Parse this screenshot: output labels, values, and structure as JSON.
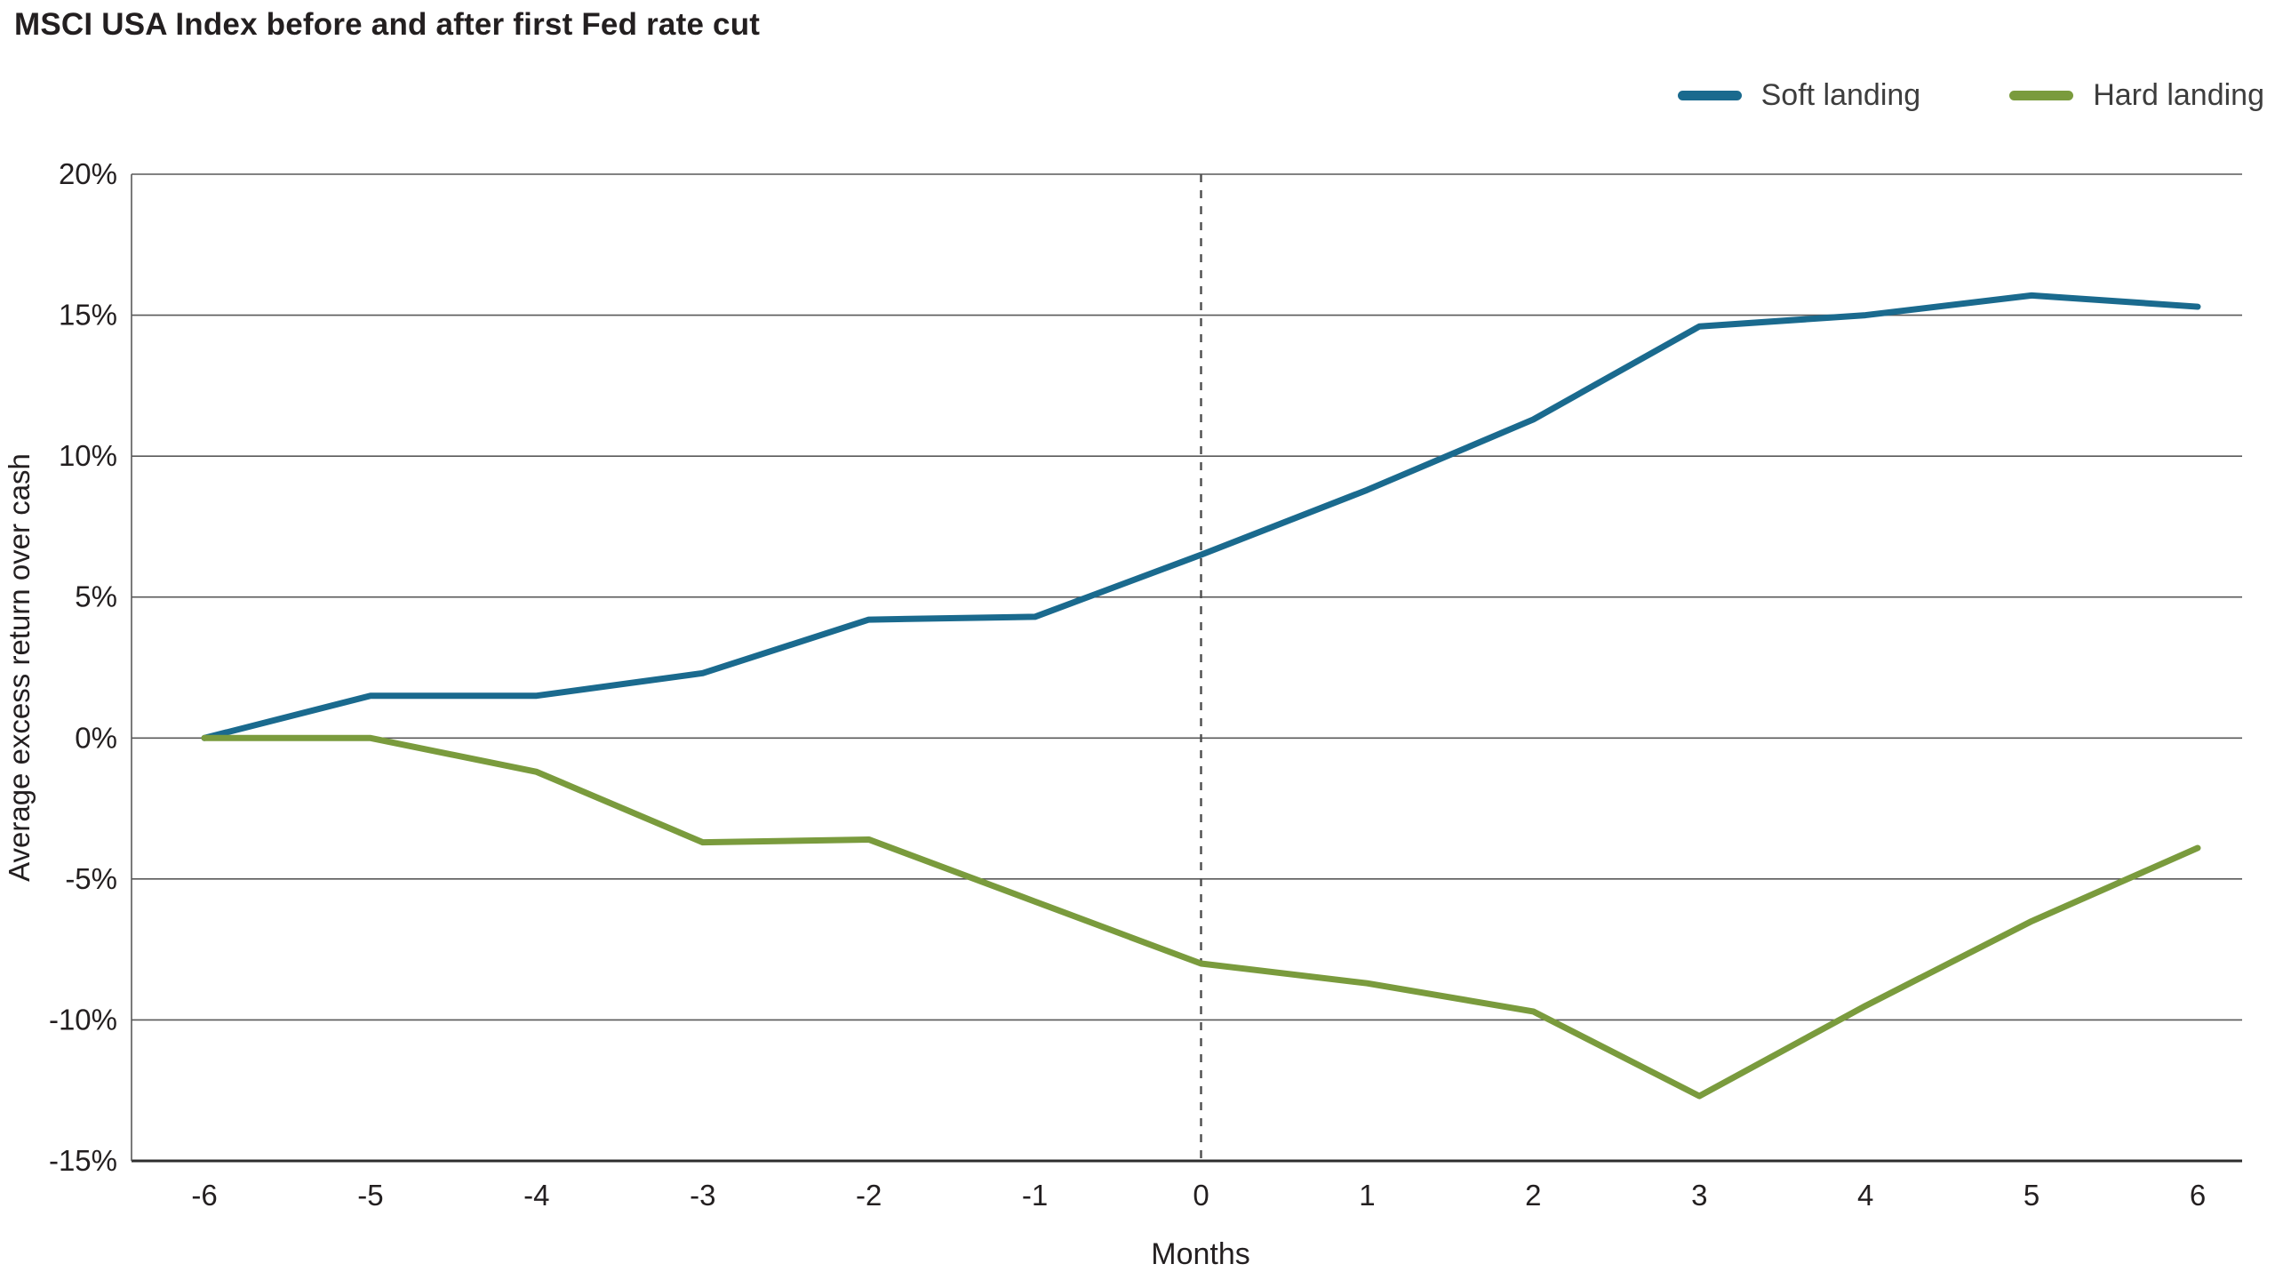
{
  "chart_data": {
    "type": "line",
    "title": "MSCI USA Index before and after first Fed rate cut",
    "xlabel": "Months",
    "ylabel": "Average excess return over cash",
    "x": [
      -6,
      -5,
      -4,
      -3,
      -2,
      -1,
      0,
      1,
      2,
      3,
      4,
      5,
      6
    ],
    "series": [
      {
        "name": "Soft landing",
        "color": "#1a6a8e",
        "values": [
          0,
          1.5,
          1.5,
          2.3,
          4.2,
          4.3,
          6.5,
          8.8,
          11.3,
          14.6,
          15.0,
          15.7,
          15.3
        ]
      },
      {
        "name": "Hard landing",
        "color": "#7a9b3d",
        "values": [
          0,
          0,
          -1.2,
          -3.7,
          -3.6,
          -5.8,
          -8.0,
          -8.7,
          -9.7,
          -12.7,
          -9.5,
          -6.5,
          -3.9
        ]
      }
    ],
    "ylim": [
      -15,
      20
    ],
    "yticks": [
      -15,
      -10,
      -5,
      0,
      5,
      10,
      15,
      20
    ],
    "ytick_labels": [
      "-15%",
      "-10%",
      "-5%",
      "0%",
      "5%",
      "10%",
      "15%",
      "20%"
    ],
    "xtick_labels": [
      "-6",
      "-5",
      "-4",
      "-3",
      "-2",
      "-1",
      "0",
      "1",
      "2",
      "3",
      "4",
      "5",
      "6"
    ],
    "vline_x": 0,
    "grid": "horizontal",
    "legend_position": "top-right"
  }
}
